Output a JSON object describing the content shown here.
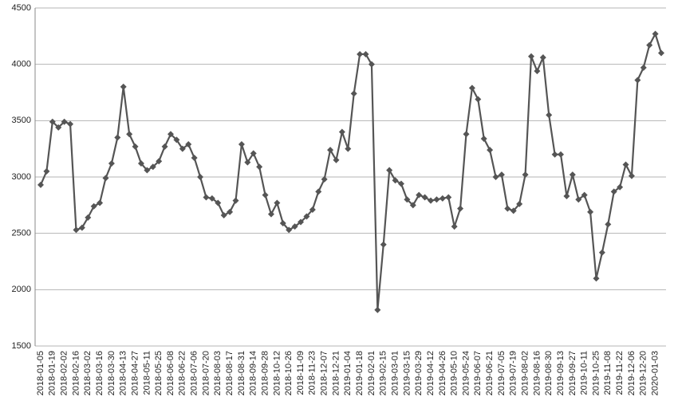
{
  "chart_data": {
    "type": "line",
    "categories": [
      "2018-01-05",
      null,
      "2018-01-19",
      null,
      "2018-02-02",
      null,
      "2018-02-16",
      null,
      "2018-03-02",
      null,
      "2018-03-16",
      null,
      "2018-03-30",
      null,
      "2018-04-13",
      null,
      "2018-04-27",
      null,
      "2018-05-11",
      null,
      "2018-05-25",
      null,
      "2018-06-08",
      null,
      "2018-06-22",
      null,
      "2018-07-06",
      null,
      "2018-07-20",
      null,
      "2018-08-03",
      null,
      "2018-08-17",
      null,
      "2018-08-31",
      null,
      "2018-09-14",
      null,
      "2018-09-28",
      null,
      "2018-10-12",
      null,
      "2018-10-26",
      null,
      "2018-11-09",
      null,
      "2018-11-23",
      null,
      "2018-12-07",
      null,
      "2018-12-21",
      null,
      "2019-01-04",
      null,
      "2019-01-18",
      null,
      "2019-02-01",
      null,
      "2019-02-15",
      null,
      "2019-03-01",
      null,
      "2019-03-15",
      null,
      "2019-03-29",
      null,
      "2019-04-12",
      null,
      "2019-04-26",
      null,
      "2019-05-10",
      null,
      "2019-05-24",
      null,
      "2019-06-07",
      null,
      "2019-06-21",
      null,
      "2019-07-05",
      null,
      "2019-07-19",
      null,
      "2019-08-02",
      null,
      "2019-08-16",
      null,
      "2019-08-30",
      null,
      "2019-09-13",
      null,
      "2019-09-27",
      null,
      "2019-10-11",
      null,
      "2019-10-25",
      null,
      "2019-11-08",
      null,
      "2019-11-22",
      null,
      "2019-12-06",
      null,
      "2019-12-20",
      null,
      "2020-01-03",
      null
    ],
    "series": [
      {
        "color": "#555555",
        "values": [
          2930,
          3050,
          3490,
          3440,
          3490,
          3470,
          2530,
          2550,
          2640,
          2740,
          2770,
          2990,
          3120,
          3350,
          3800,
          3380,
          3270,
          3120,
          3060,
          3090,
          3140,
          3270,
          3380,
          3330,
          3250,
          3290,
          3170,
          3000,
          2820,
          2810,
          2770,
          2660,
          2690,
          2790,
          3290,
          3130,
          3210,
          3090,
          2840,
          2670,
          2770,
          2590,
          2530,
          2560,
          2600,
          2650,
          2710,
          2870,
          2980,
          3240,
          3150,
          3400,
          3250,
          3740,
          4090,
          4090,
          4000,
          1820,
          2400,
          3060,
          2970,
          2940,
          2800,
          2750,
          2840,
          2820,
          2790,
          2800,
          2810,
          2820,
          2560,
          2720,
          3380,
          3790,
          3690,
          3340,
          3240,
          3000,
          3020,
          2720,
          2700,
          2760,
          3020,
          4070,
          3940,
          4060,
          3550,
          3200,
          3200,
          2830,
          3020,
          2800,
          2840,
          2690,
          2100,
          2330,
          2580,
          2870,
          2910,
          3110,
          3010,
          3860,
          3970,
          4170,
          4270,
          4100
        ]
      }
    ],
    "ylim": [
      1500,
      4500
    ],
    "yticks": [
      1500,
      2000,
      2500,
      3000,
      3500,
      4000,
      4500
    ],
    "grid": true
  }
}
